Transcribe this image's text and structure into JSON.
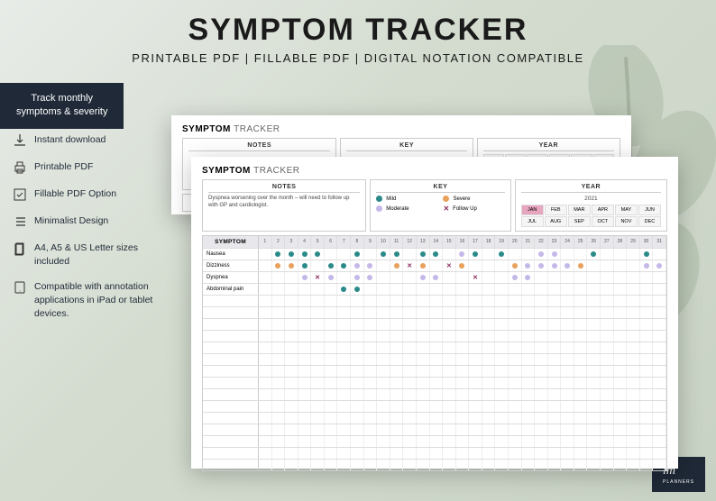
{
  "header": {
    "title": "SYMPTOM TRACKER",
    "subtitle": "PRINTABLE PDF | FILLABLE PDF | DIGITAL NOTATION COMPATIBLE"
  },
  "badge": {
    "line1": "Track monthly",
    "line2": "symptoms & severity"
  },
  "features": [
    {
      "icon": "download",
      "label": "Instant download"
    },
    {
      "icon": "print",
      "label": "Printable PDF"
    },
    {
      "icon": "edit",
      "label": "Fillable PDF Option"
    },
    {
      "icon": "list",
      "label": "Minimalist Design"
    },
    {
      "icon": "page",
      "label": "A4, A5 & US Letter sizes included"
    },
    {
      "icon": "tablet",
      "label": "Compatible with annotation applications in iPad or tablet devices."
    }
  ],
  "sheet": {
    "title_bold": "SYMPTOM",
    "title_light": "TRACKER",
    "notes_header": "NOTES",
    "notes_text": "Dyspnea worsening over the month – will need to follow up with GP and cardiologist.",
    "key_header": "KEY",
    "key_items": [
      {
        "type": "dot",
        "color": "#2a8a8a",
        "label": "Mild"
      },
      {
        "type": "dot",
        "color": "#e8a05c",
        "label": "Severe"
      },
      {
        "type": "dot",
        "color": "#c4b8e8",
        "label": "Moderate"
      },
      {
        "type": "x",
        "color": "#8b2a5a",
        "label": "Follow Up"
      }
    ],
    "year_header": "YEAR",
    "year": "2021",
    "months": [
      "JAN",
      "FEB",
      "MAR",
      "APR",
      "MAY",
      "JUN",
      "JUL",
      "AUG",
      "SEP",
      "OCT",
      "NOV",
      "DEC"
    ],
    "month_selected": "JAN",
    "symptom_header": "SYMPTOM",
    "days": 31,
    "symptoms": [
      {
        "name": "Nausea",
        "marks": {
          "2": "m",
          "3": "m",
          "4": "m",
          "5": "m",
          "8": "m",
          "10": "m",
          "11": "m",
          "13": "m",
          "14": "m",
          "16": "mo",
          "17": "m",
          "19": "m",
          "22": "mo",
          "23": "mo",
          "26": "m",
          "30": "m"
        }
      },
      {
        "name": "Dizziness",
        "marks": {
          "2": "s",
          "3": "s",
          "4": "m",
          "6": "m",
          "7": "m",
          "8": "mo",
          "9": "mo",
          "11": "s",
          "12": "x",
          "13": "s",
          "15": "x",
          "16": "s",
          "20": "s",
          "21": "mo",
          "22": "mo",
          "23": "mo",
          "24": "mo",
          "25": "s",
          "30": "mo",
          "31": "mo"
        }
      },
      {
        "name": "Dyspnea",
        "marks": {
          "4": "mo",
          "5": "x",
          "6": "mo",
          "8": "mo",
          "9": "mo",
          "13": "mo",
          "14": "mo",
          "17": "x",
          "20": "mo",
          "21": "mo"
        }
      },
      {
        "name": "Abdominal pain",
        "marks": {
          "7": "m",
          "8": "m"
        }
      },
      {
        "name": "",
        "marks": {}
      },
      {
        "name": "",
        "marks": {}
      },
      {
        "name": "",
        "marks": {}
      },
      {
        "name": "",
        "marks": {}
      },
      {
        "name": "",
        "marks": {}
      },
      {
        "name": "",
        "marks": {}
      },
      {
        "name": "",
        "marks": {}
      },
      {
        "name": "",
        "marks": {}
      },
      {
        "name": "",
        "marks": {}
      },
      {
        "name": "",
        "marks": {}
      },
      {
        "name": "",
        "marks": {}
      },
      {
        "name": "",
        "marks": {}
      },
      {
        "name": "",
        "marks": {}
      },
      {
        "name": "",
        "marks": {}
      },
      {
        "name": "",
        "marks": {}
      }
    ],
    "colors": {
      "m": "#2a8a8a",
      "mo": "#c4b8e8",
      "s": "#e8a05c",
      "x": "#8b2a5a"
    }
  },
  "logo": {
    "text": "lm",
    "sub": "PLANNERS"
  }
}
